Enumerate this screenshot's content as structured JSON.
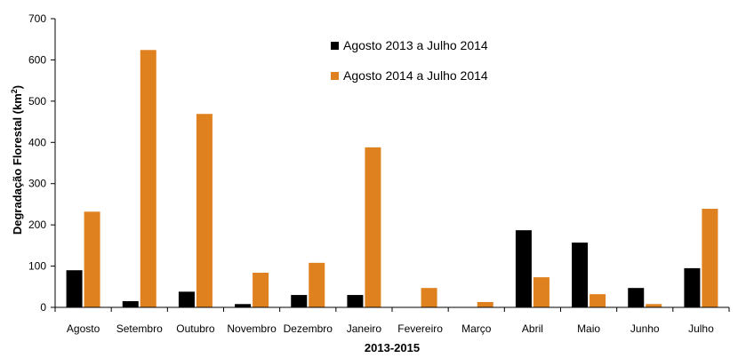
{
  "chart_data": {
    "type": "bar",
    "categories": [
      "Agosto",
      "Setembro",
      "Outubro",
      "Novembro",
      "Dezembro",
      "Janeiro",
      "Fevereiro",
      "Março",
      "Abril",
      "Maio",
      "Junho",
      "Julho"
    ],
    "series": [
      {
        "name": "Agosto 2013 a Julho 2014",
        "color": "#000000",
        "values": [
          90,
          15,
          38,
          8,
          30,
          30,
          0,
          0,
          187,
          157,
          47,
          95
        ]
      },
      {
        "name": "Agosto 2014 a Julho 2014",
        "color": "#e0811f",
        "values": [
          232,
          624,
          469,
          84,
          108,
          388,
          47,
          13,
          73,
          32,
          8,
          239
        ]
      }
    ],
    "title": "",
    "xlabel": "2013-2015",
    "ylabel": "Degradação Florestal (km",
    "ylabel_superscript": "2",
    "ylabel_suffix": ")",
    "ylim": [
      0,
      700
    ],
    "yticks": [
      0,
      100,
      200,
      300,
      400,
      500,
      600,
      700
    ],
    "grid": false,
    "legend_position": "top-center"
  }
}
